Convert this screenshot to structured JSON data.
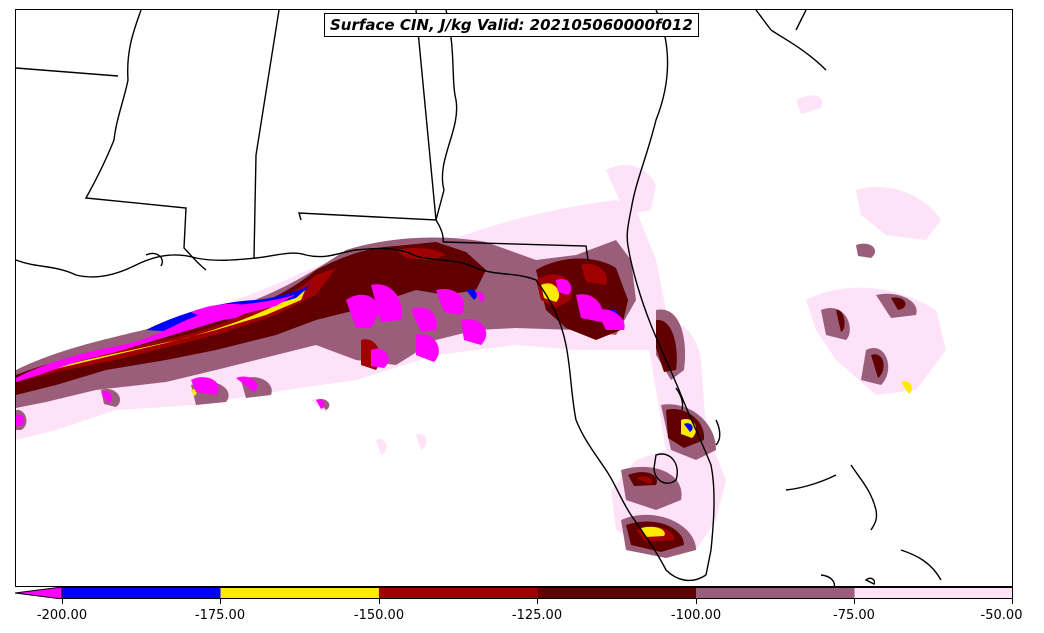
{
  "title": "Surface CIN, J/kg Valid: 202105060000f012",
  "colors": {
    "below_min": "#ff00ff",
    "n200_n175": "#0000ff",
    "n175_n150": "#ffea00",
    "n150_n125": "#a00000",
    "n125_n100": "#600000",
    "n100_n75": "#9a5e7a",
    "n75_n50": "#fde2f8",
    "coast": "#000000"
  },
  "colorbar": {
    "ticks": [
      "-200.00",
      "-175.00",
      "-150.00",
      "-125.00",
      "-100.00",
      "-75.00",
      "-50.00"
    ],
    "extend": "min"
  }
}
